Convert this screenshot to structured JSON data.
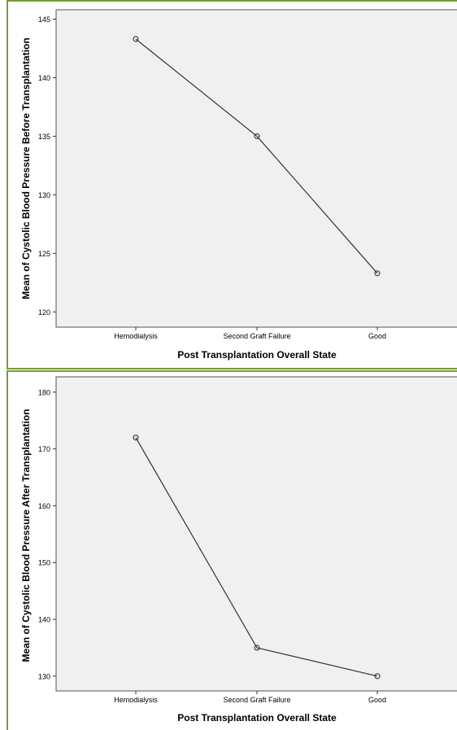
{
  "chart_data": [
    {
      "type": "line",
      "title": "",
      "xlabel": "Post Transplantation Overall State",
      "ylabel": "Mean of Cystolic Blood Pressure Before Transplantation",
      "categories": [
        "Hemodialysis",
        "Second Graft Failure",
        "Good"
      ],
      "values": [
        143.3,
        135.0,
        123.3
      ],
      "ylim": [
        118.7,
        145.8
      ],
      "yticks": [
        120,
        125,
        130,
        135,
        140,
        145
      ],
      "grid": false,
      "legend": "none",
      "marker": "open-circle",
      "colors": {
        "plot_background": "#f0f0f0",
        "line": "#333333",
        "frame": "#7a9a3c"
      }
    },
    {
      "type": "line",
      "title": "",
      "xlabel": "Post Transplantation Overall State",
      "ylabel": "Mean of Cystolic Blood Pressure After Transplantation",
      "categories": [
        "Hemodialysis",
        "Second Graft Failure",
        "Good"
      ],
      "values": [
        172.0,
        135.0,
        130.0
      ],
      "ylim": [
        127.4,
        182.7
      ],
      "yticks": [
        130,
        140,
        150,
        160,
        170,
        180
      ],
      "grid": false,
      "legend": "none",
      "marker": "open-circle",
      "colors": {
        "plot_background": "#f0f0f0",
        "line": "#333333",
        "frame": "#7a9a3c"
      }
    }
  ]
}
